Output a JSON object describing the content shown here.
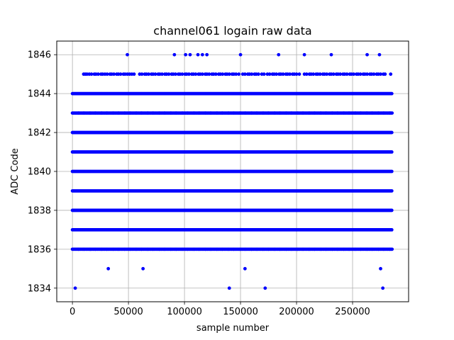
{
  "chart_data": {
    "type": "scatter",
    "title": "channel061 logain raw data",
    "xlabel": "sample number",
    "ylabel": "ADC Code",
    "xlim": [
      -14000,
      300000
    ],
    "ylim": [
      1833.3,
      1846.7
    ],
    "x_ticks": [
      0,
      50000,
      100000,
      150000,
      200000,
      250000
    ],
    "x_tick_labels": [
      "0",
      "50000",
      "100000",
      "150000",
      "200000",
      "250000"
    ],
    "y_ticks": [
      1834,
      1836,
      1838,
      1840,
      1842,
      1844,
      1846
    ],
    "y_tick_labels": [
      "1834",
      "1836",
      "1838",
      "1840",
      "1842",
      "1844",
      "1846"
    ],
    "grid": true,
    "marker_color": "#0000ff",
    "dense_levels": {
      "x_range": [
        0,
        285000
      ],
      "y_values": [
        1837,
        1838,
        1839,
        1840,
        1841,
        1842,
        1844
      ]
    },
    "semi_dense_levels": [
      {
        "y": 1836,
        "x_range": [
          0,
          285000
        ]
      },
      {
        "y": 1843,
        "x_range": [
          0,
          285000
        ]
      }
    ],
    "sparse_1845_x": [
      10000,
      11500,
      13000,
      15000,
      17000,
      19500,
      21000,
      23000,
      25500,
      27000,
      29000,
      31000,
      33500,
      35000,
      37000,
      39500,
      41000,
      43000,
      45500,
      47000,
      49000,
      51000,
      53000,
      55000,
      60000,
      62000,
      64500,
      66000,
      68000,
      70500,
      72000,
      74000,
      76500,
      78000,
      80000,
      82500,
      84000,
      86000,
      88500,
      90000,
      92000,
      94500,
      96000,
      98000,
      100500,
      102000,
      104000,
      106500,
      108000,
      110000,
      112500,
      114000,
      116000,
      118500,
      120000,
      122000,
      124500,
      126000,
      128000,
      130500,
      132000,
      134000,
      136500,
      138000,
      140000,
      142500,
      144000,
      146000,
      148500,
      152000,
      154000,
      156500,
      158000,
      160000,
      162500,
      164000,
      166000,
      169000,
      171000,
      174000,
      176000,
      178500,
      180000,
      182000,
      184500,
      186000,
      188000,
      190500,
      192000,
      194000,
      196500,
      198000,
      200000,
      202500,
      207000,
      209000,
      211500,
      213000,
      215000,
      217500,
      219000,
      221000,
      223500,
      225000,
      227000,
      229500,
      231000,
      233000,
      235500,
      237000,
      239000,
      241500,
      243000,
      245000,
      247500,
      249000,
      251000,
      253500,
      255000,
      257000,
      259500,
      261000,
      263000,
      265500,
      267000,
      269000,
      271500,
      273000,
      275000,
      277500,
      279000,
      284000
    ],
    "outliers": [
      {
        "x": 49000,
        "y": 1846
      },
      {
        "x": 91000,
        "y": 1846
      },
      {
        "x": 101000,
        "y": 1846
      },
      {
        "x": 105000,
        "y": 1846
      },
      {
        "x": 112000,
        "y": 1846
      },
      {
        "x": 116000,
        "y": 1846
      },
      {
        "x": 120000,
        "y": 1846
      },
      {
        "x": 150000,
        "y": 1846
      },
      {
        "x": 184000,
        "y": 1846
      },
      {
        "x": 207000,
        "y": 1846
      },
      {
        "x": 231000,
        "y": 1846
      },
      {
        "x": 263000,
        "y": 1846
      },
      {
        "x": 274000,
        "y": 1846
      },
      {
        "x": 32000,
        "y": 1835
      },
      {
        "x": 63000,
        "y": 1835
      },
      {
        "x": 154000,
        "y": 1835
      },
      {
        "x": 275000,
        "y": 1835
      },
      {
        "x": 2500,
        "y": 1834
      },
      {
        "x": 140000,
        "y": 1834
      },
      {
        "x": 172000,
        "y": 1834
      },
      {
        "x": 277000,
        "y": 1834
      }
    ]
  }
}
